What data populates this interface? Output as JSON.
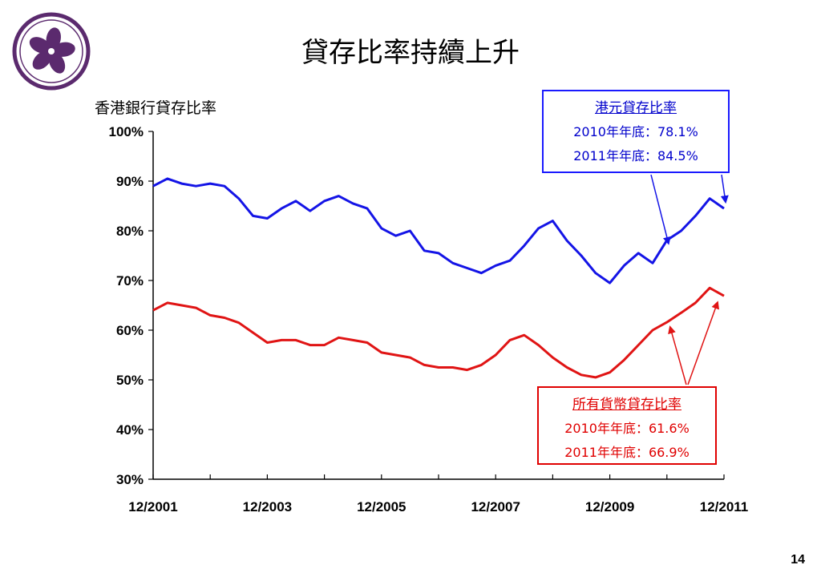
{
  "title": "貸存比率持續上升",
  "page_number": "14",
  "colors": {
    "hkd": "#1414e6",
    "all": "#e01414",
    "logo": "#5b2a6e"
  },
  "callouts": {
    "hkd": {
      "heading": "港元貸存比率",
      "line1": "2010年年底：78.1%",
      "line2": "2011年年底：84.5%"
    },
    "all": {
      "heading": "所有貨幣貸存比率",
      "line1": "2010年年底：61.6%",
      "line2": "2011年年底：66.9%"
    }
  },
  "chart_data": {
    "type": "line",
    "ylabel": "香港銀行貸存比率",
    "ylim": [
      30,
      100
    ],
    "yticks": [
      "30%",
      "40%",
      "50%",
      "60%",
      "70%",
      "80%",
      "90%",
      "100%"
    ],
    "xticks": [
      "12/2001",
      "12/2003",
      "12/2005",
      "12/2007",
      "12/2009",
      "12/2011"
    ],
    "xlim": [
      2001.92,
      2011.92
    ],
    "series": [
      {
        "key": "hkd",
        "x": [
          2001.92,
          2002.17,
          2002.42,
          2002.67,
          2002.92,
          2003.17,
          2003.42,
          2003.67,
          2003.92,
          2004.17,
          2004.42,
          2004.67,
          2004.92,
          2005.17,
          2005.42,
          2005.67,
          2005.92,
          2006.17,
          2006.42,
          2006.67,
          2006.92,
          2007.17,
          2007.42,
          2007.67,
          2007.92,
          2008.17,
          2008.42,
          2008.67,
          2008.92,
          2009.17,
          2009.42,
          2009.67,
          2009.92,
          2010.17,
          2010.42,
          2010.67,
          2010.92,
          2011.17,
          2011.42,
          2011.67,
          2011.92
        ],
        "values": [
          89,
          90.5,
          89.5,
          89,
          89.5,
          89,
          86.5,
          83,
          82.5,
          84.5,
          86,
          84,
          86,
          87,
          85.5,
          84.5,
          80.5,
          79,
          80,
          76,
          75.5,
          73.5,
          72.5,
          71.5,
          73,
          74,
          77,
          80.5,
          82,
          78,
          75,
          71.5,
          69.5,
          73,
          75.5,
          73.5,
          78.1,
          80,
          83,
          86.5,
          84.5
        ]
      },
      {
        "key": "all",
        "x": [
          2001.92,
          2002.17,
          2002.42,
          2002.67,
          2002.92,
          2003.17,
          2003.42,
          2003.67,
          2003.92,
          2004.17,
          2004.42,
          2004.67,
          2004.92,
          2005.17,
          2005.42,
          2005.67,
          2005.92,
          2006.17,
          2006.42,
          2006.67,
          2006.92,
          2007.17,
          2007.42,
          2007.67,
          2007.92,
          2008.17,
          2008.42,
          2008.67,
          2008.92,
          2009.17,
          2009.42,
          2009.67,
          2009.92,
          2010.17,
          2010.42,
          2010.67,
          2010.92,
          2011.17,
          2011.42,
          2011.67,
          2011.92
        ],
        "values": [
          64,
          65.5,
          65,
          64.5,
          63,
          62.5,
          61.5,
          59.5,
          57.5,
          58,
          58,
          57,
          57,
          58.5,
          58,
          57.5,
          55.5,
          55,
          54.5,
          53,
          52.5,
          52.5,
          52,
          53,
          55,
          58,
          59,
          57,
          54.5,
          52.5,
          51,
          50.5,
          51.5,
          54,
          57,
          60,
          61.6,
          63.5,
          65.5,
          68.5,
          66.9
        ]
      }
    ]
  }
}
